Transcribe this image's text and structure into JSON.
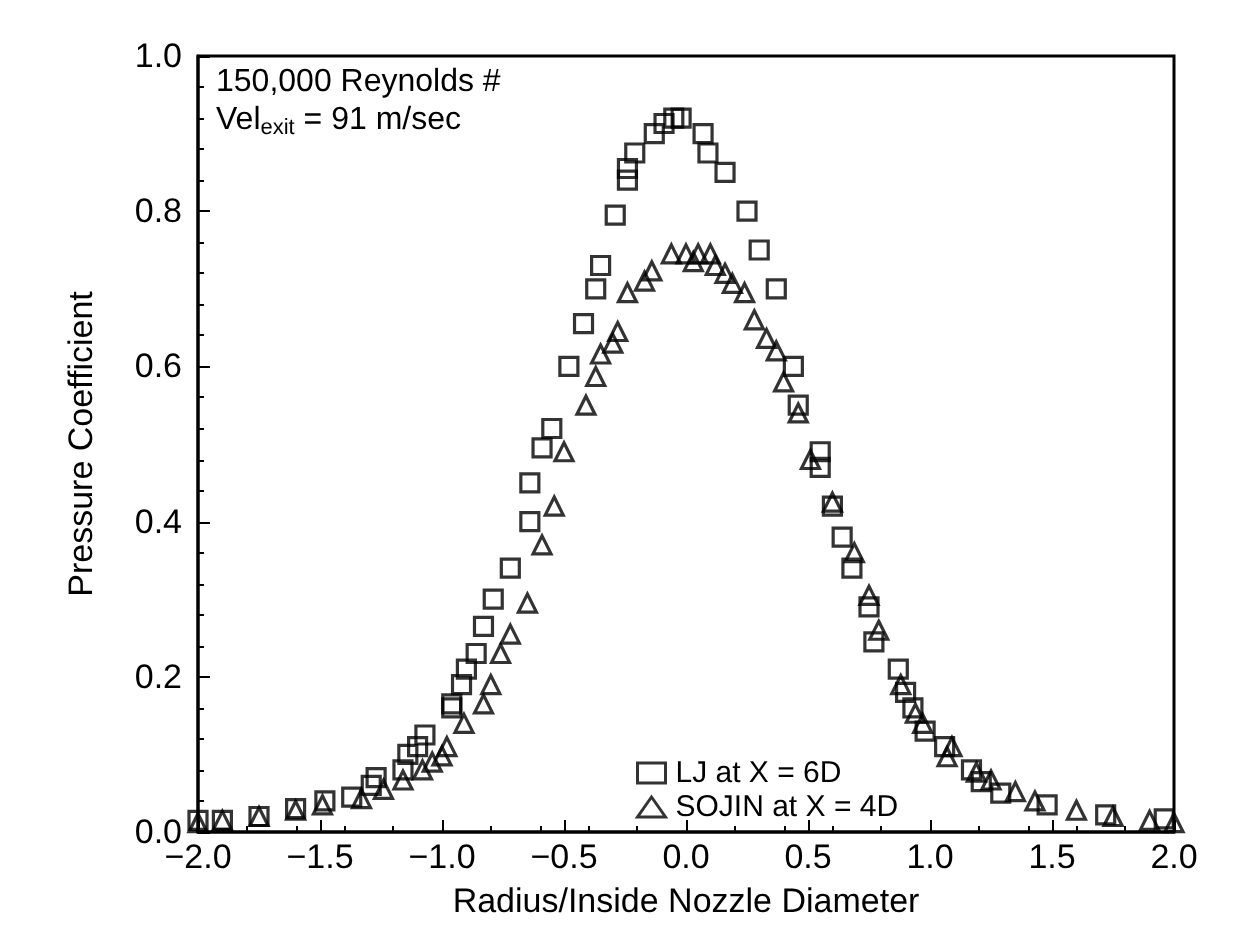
{
  "chart_data": {
    "type": "scatter",
    "xlabel": "Radius/Inside Nozzle Diameter",
    "ylabel": "Pressure Coefficient",
    "annotations": [
      "150,000 Reynolds #",
      "Vel$_{exit}$ = 91 m/sec"
    ],
    "xlim": [
      -2.0,
      2.0
    ],
    "ylim": [
      0.0,
      1.0
    ],
    "xticks": [
      {
        "value": -2.0,
        "label": "−2.0"
      },
      {
        "value": -1.5,
        "label": "−1.5"
      },
      {
        "value": -1.0,
        "label": "−1.0"
      },
      {
        "value": -0.5,
        "label": "−0.5"
      },
      {
        "value": 0,
        "label": "0.0"
      },
      {
        "value": 0.5,
        "label": "0.5"
      },
      {
        "value": 1.0,
        "label": "1.0"
      },
      {
        "value": 1.5,
        "label": "1.5"
      },
      {
        "value": 2.0,
        "label": "2.0"
      }
    ],
    "yticks": [
      {
        "value": 0,
        "label": "0.0"
      },
      {
        "value": 0.2,
        "label": "0.2"
      },
      {
        "value": 0.4,
        "label": "0.4"
      },
      {
        "value": 0.6,
        "label": "0.6"
      },
      {
        "value": 0.8,
        "label": "0.8"
      },
      {
        "value": 1.0,
        "label": "1.0"
      }
    ],
    "grid": false,
    "legend": "bottom",
    "series": [
      {
        "name": "LJ at X = 6D",
        "color": "#000000",
        "marker": "square",
        "x": [
          -2.0,
          -1.9,
          -1.75,
          -1.6,
          -1.48,
          -1.37,
          -1.29,
          -1.27,
          -1.16,
          -1.14,
          -1.1,
          -1.07,
          -0.96,
          -0.96,
          -0.92,
          -0.9,
          -0.86,
          -0.83,
          -0.79,
          -0.72,
          -0.64,
          -0.64,
          -0.59,
          -0.55,
          -0.48,
          -0.42,
          -0.37,
          -0.35,
          -0.29,
          -0.24,
          -0.24,
          -0.21,
          -0.13,
          -0.09,
          -0.05,
          -0.02,
          0.07,
          0.09,
          0.16,
          0.25,
          0.3,
          0.37,
          0.44,
          0.46,
          0.55,
          0.55,
          0.6,
          0.64,
          0.68,
          0.75,
          0.77,
          0.87,
          0.9,
          0.93,
          0.98,
          1.06,
          1.17,
          1.21,
          1.29,
          1.48,
          1.72,
          1.96
        ],
        "values": [
          0.015,
          0.015,
          0.02,
          0.03,
          0.04,
          0.045,
          0.06,
          0.07,
          0.08,
          0.1,
          0.11,
          0.125,
          0.16,
          0.165,
          0.19,
          0.21,
          0.23,
          0.265,
          0.3,
          0.34,
          0.4,
          0.45,
          0.495,
          0.52,
          0.6,
          0.655,
          0.7,
          0.73,
          0.795,
          0.84,
          0.855,
          0.875,
          0.9,
          0.913,
          0.92,
          0.92,
          0.9,
          0.875,
          0.85,
          0.8,
          0.75,
          0.7,
          0.6,
          0.55,
          0.49,
          0.47,
          0.42,
          0.38,
          0.34,
          0.29,
          0.245,
          0.21,
          0.18,
          0.16,
          0.13,
          0.11,
          0.08,
          0.065,
          0.05,
          0.035,
          0.022,
          0.017
        ]
      },
      {
        "name": "SOJIN at X = 4D",
        "color": "#000000",
        "marker": "triangle",
        "x": [
          -2.0,
          -1.9,
          -1.75,
          -1.6,
          -1.49,
          -1.33,
          -1.24,
          -1.16,
          -1.08,
          -1.04,
          -1.0,
          -0.98,
          -0.91,
          -0.83,
          -0.8,
          -0.76,
          -0.72,
          -0.65,
          -0.59,
          -0.54,
          -0.5,
          -0.41,
          -0.37,
          -0.35,
          -0.3,
          -0.28,
          -0.24,
          -0.17,
          -0.14,
          -0.06,
          0.0,
          0.03,
          0.05,
          0.1,
          0.12,
          0.16,
          0.19,
          0.24,
          0.28,
          0.33,
          0.37,
          0.4,
          0.46,
          0.51,
          0.6,
          0.69,
          0.75,
          0.79,
          0.88,
          0.94,
          0.97,
          1.07,
          1.09,
          1.19,
          1.25,
          1.35,
          1.43,
          1.6,
          1.75,
          1.9,
          2.0
        ],
        "values": [
          0.012,
          0.015,
          0.02,
          0.028,
          0.035,
          0.043,
          0.055,
          0.067,
          0.08,
          0.09,
          0.098,
          0.11,
          0.14,
          0.165,
          0.19,
          0.23,
          0.255,
          0.295,
          0.37,
          0.42,
          0.49,
          0.55,
          0.587,
          0.616,
          0.63,
          0.645,
          0.695,
          0.71,
          0.723,
          0.745,
          0.745,
          0.735,
          0.745,
          0.745,
          0.73,
          0.72,
          0.707,
          0.695,
          0.66,
          0.636,
          0.62,
          0.58,
          0.54,
          0.48,
          0.425,
          0.36,
          0.305,
          0.26,
          0.19,
          0.153,
          0.14,
          0.097,
          0.11,
          0.077,
          0.067,
          0.052,
          0.04,
          0.028,
          0.02,
          0.015,
          0.012
        ]
      }
    ]
  }
}
